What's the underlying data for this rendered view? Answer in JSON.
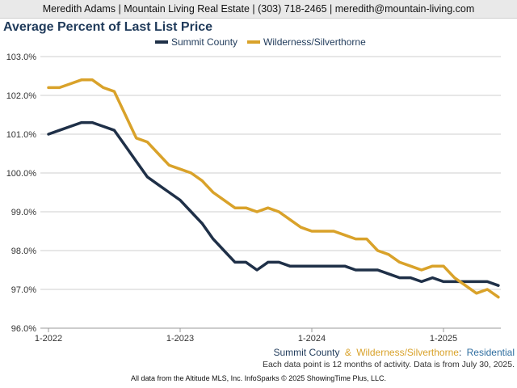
{
  "header": {
    "contact": "Meredith Adams | Mountain Living Real Estate | (303) 718-2465 | meredith@mountain-living.com"
  },
  "caption": {
    "series1": "Summit County",
    "amp": "&",
    "series2": "Wilderness/Silverthorne",
    "colon": ":",
    "segment": "Residential"
  },
  "note": "Each data point is 12 months of activity. Data is from July 30, 2025.",
  "footer": "All data from the Altitude MLS, Inc. InfoSparks © 2025 ShowingTime Plus, LLC.",
  "chart_data": {
    "type": "line",
    "title": "Average Percent of Last List Price",
    "legend_position": "top-center",
    "ylim": [
      96.0,
      103.0
    ],
    "yticks": [
      "96.0%",
      "97.0%",
      "98.0%",
      "99.0%",
      "100.0%",
      "101.0%",
      "102.0%",
      "103.0%"
    ],
    "xticks": [
      "1-2022",
      "1-2023",
      "1-2024",
      "1-2025"
    ],
    "x": [
      "1-2022",
      "2-2022",
      "3-2022",
      "4-2022",
      "5-2022",
      "6-2022",
      "7-2022",
      "8-2022",
      "9-2022",
      "10-2022",
      "11-2022",
      "12-2022",
      "1-2023",
      "2-2023",
      "3-2023",
      "4-2023",
      "5-2023",
      "6-2023",
      "7-2023",
      "8-2023",
      "9-2023",
      "10-2023",
      "11-2023",
      "12-2023",
      "1-2024",
      "2-2024",
      "3-2024",
      "4-2024",
      "5-2024",
      "6-2024",
      "7-2024",
      "8-2024",
      "9-2024",
      "10-2024",
      "11-2024",
      "12-2024",
      "1-2025",
      "2-2025",
      "3-2025",
      "4-2025",
      "5-2025",
      "6-2025"
    ],
    "grid": true,
    "series": [
      {
        "name": "Summit County",
        "color": "#1f3048",
        "values": [
          101.0,
          101.1,
          101.2,
          101.3,
          101.3,
          101.2,
          101.1,
          100.7,
          100.3,
          99.9,
          99.7,
          99.5,
          99.3,
          99.0,
          98.7,
          98.3,
          98.0,
          97.7,
          97.7,
          97.5,
          97.7,
          97.7,
          97.6,
          97.6,
          97.6,
          97.6,
          97.6,
          97.6,
          97.5,
          97.5,
          97.5,
          97.4,
          97.3,
          97.3,
          97.2,
          97.3,
          97.2,
          97.2,
          97.2,
          97.2,
          97.2,
          97.1
        ]
      },
      {
        "name": "Wilderness/Silverthorne",
        "color": "#d9a22a",
        "values": [
          102.2,
          102.2,
          102.3,
          102.4,
          102.4,
          102.2,
          102.1,
          101.5,
          100.9,
          100.8,
          100.5,
          100.2,
          100.1,
          100.0,
          99.8,
          99.5,
          99.3,
          99.1,
          99.1,
          99.0,
          99.1,
          99.0,
          98.8,
          98.6,
          98.5,
          98.5,
          98.5,
          98.4,
          98.3,
          98.3,
          98.0,
          97.9,
          97.7,
          97.6,
          97.5,
          97.6,
          97.6,
          97.3,
          97.1,
          96.9,
          97.0,
          96.8
        ]
      }
    ]
  }
}
